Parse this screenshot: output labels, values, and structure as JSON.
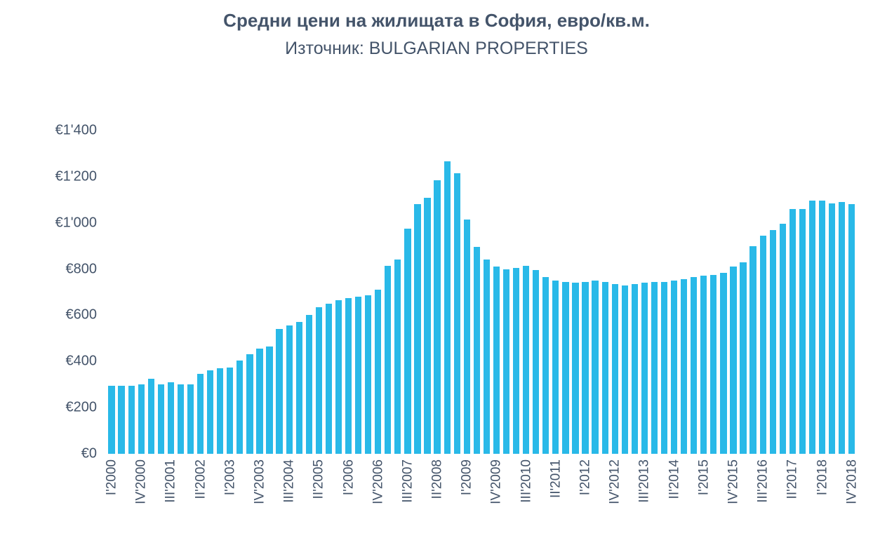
{
  "title": "Средни цени на жилищата в София, евро/кв.м.",
  "subtitle": "Източник: BULGARIAN PROPERTIES",
  "colors": {
    "bar": "#29B9E8",
    "text": "#44546A"
  },
  "chart_data": {
    "type": "bar",
    "title": "Средни цени на жилищата в София, евро/кв.м.",
    "subtitle": "Източник: BULGARIAN PROPERTIES",
    "xlabel": "",
    "ylabel": "",
    "ylim": [
      0,
      1400
    ],
    "grid": false,
    "legend": false,
    "x_tick_every": 3,
    "y_ticks": [
      "€0",
      "€200",
      "€400",
      "€600",
      "€800",
      "€1'000",
      "€1'200",
      "€1'400"
    ],
    "categories": [
      "I'2000",
      "II'2000",
      "III'2000",
      "IV'2000",
      "I'2001",
      "II'2001",
      "III'2001",
      "IV'2001",
      "I'2002",
      "II'2002",
      "III'2002",
      "IV'2002",
      "I'2003",
      "II'2003",
      "III'2003",
      "IV'2003",
      "I'2004",
      "II'2004",
      "III'2004",
      "IV'2004",
      "I'2005",
      "II'2005",
      "III'2005",
      "IV'2005",
      "I'2006",
      "II'2006",
      "III'2006",
      "IV'2006",
      "I'2007",
      "II'2007",
      "III'2007",
      "IV'2007",
      "I'2008",
      "II'2008",
      "III'2008",
      "IV'2008",
      "I'2009",
      "II'2009",
      "III'2009",
      "IV'2009",
      "I'2010",
      "II'2010",
      "III'2010",
      "IV'2010",
      "I'2011",
      "II'2011",
      "III'2011",
      "IV'2011",
      "I'2012",
      "II'2012",
      "III'2012",
      "IV'2012",
      "I'2013",
      "II'2013",
      "III'2013",
      "IV'2013",
      "I'2014",
      "II'2014",
      "III'2014",
      "IV'2014",
      "I'2015",
      "II'2015",
      "III'2015",
      "IV'2015",
      "I'2016",
      "II'2016",
      "III'2016",
      "IV'2016",
      "I'2017",
      "II'2017",
      "III'2017",
      "IV'2017",
      "I'2018",
      "II'2018",
      "III'2018",
      "IV'2018"
    ],
    "values": [
      295,
      295,
      295,
      300,
      325,
      300,
      310,
      300,
      300,
      345,
      360,
      370,
      375,
      405,
      430,
      455,
      465,
      540,
      555,
      570,
      600,
      635,
      650,
      665,
      675,
      680,
      685,
      710,
      815,
      840,
      975,
      1080,
      1110,
      1185,
      1265,
      1215,
      1015,
      895,
      840,
      810,
      800,
      805,
      815,
      795,
      765,
      750,
      745,
      740,
      745,
      750,
      745,
      735,
      730,
      735,
      740,
      745,
      745,
      750,
      755,
      765,
      770,
      775,
      785,
      810,
      830,
      900,
      945,
      970,
      995,
      1060,
      1060,
      1095,
      1095,
      1085,
      1090,
      1080
    ]
  }
}
